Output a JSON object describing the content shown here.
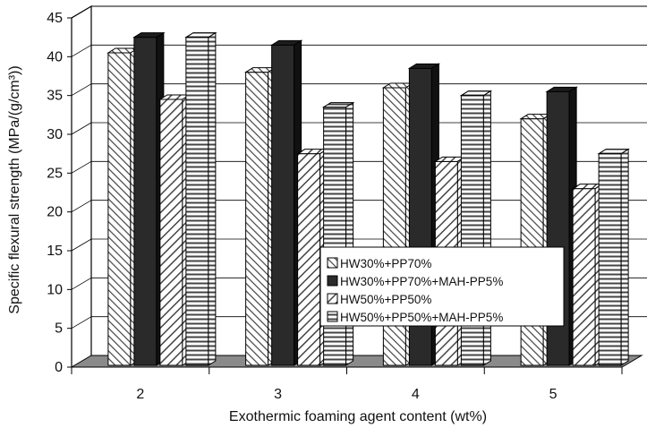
{
  "chart_data": {
    "type": "bar",
    "categories": [
      "2",
      "3",
      "4",
      "5"
    ],
    "series": [
      {
        "name": "HW30%+PP70%",
        "values": [
          40.5,
          38.0,
          36.0,
          32.0
        ],
        "pattern": "diag-fine"
      },
      {
        "name": "HW30%+PP70%+MAH-PP5%",
        "values": [
          42.5,
          41.5,
          38.5,
          35.5
        ],
        "pattern": "solid-dark"
      },
      {
        "name": "HW50%+PP50%",
        "values": [
          34.5,
          27.5,
          26.5,
          23.0
        ],
        "pattern": "diag-wide"
      },
      {
        "name": "HW50%+PP50%+MAH-PP5%",
        "values": [
          42.5,
          33.5,
          35.0,
          27.5
        ],
        "pattern": "horizontal"
      }
    ],
    "xlabel": "Exothermic foaming agent content (wt%)",
    "ylabel": "Specific flexural strength (MPa/(g/cm³))",
    "ylim": [
      0,
      45
    ],
    "yticks": [
      "0",
      "5",
      "10",
      "15",
      "20",
      "25",
      "30",
      "35",
      "40",
      "45"
    ],
    "grid": true,
    "legend_position": "center-right",
    "colors": {
      "dark_bar": "#2a2a2a",
      "floor": "#8a8a8a",
      "hatch": "#333333"
    }
  }
}
